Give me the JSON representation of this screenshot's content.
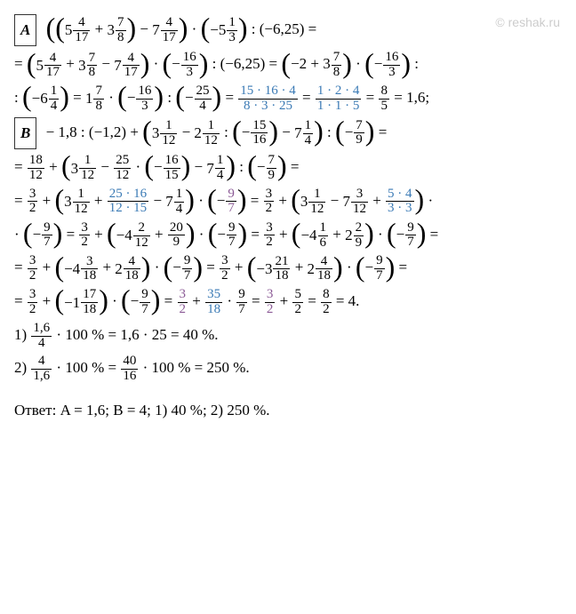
{
  "watermark": "© reshak.ru",
  "labelA": "A",
  "labelB": "B",
  "lineA1_p1": "5",
  "lineA1_f1n": "4",
  "lineA1_f1d": "17",
  "lineA1_p2": "3",
  "lineA1_f2n": "7",
  "lineA1_f2d": "8",
  "lineA1_p3": "7",
  "lineA1_f3n": "4",
  "lineA1_f3d": "17",
  "lineA1_p4": "−5",
  "lineA1_f4n": "1",
  "lineA1_f4d": "3",
  "lineA1_tail": " : (−6,25) =",
  "lineA2_p1": "5",
  "lineA2_f1n": "4",
  "lineA2_f1d": "17",
  "lineA2_p2": "3",
  "lineA2_f2n": "7",
  "lineA2_f2d": "8",
  "lineA2_p3": "7",
  "lineA2_f3n": "4",
  "lineA2_f3d": "17",
  "lineA2_f4n": "16",
  "lineA2_f4d": "3",
  "lineA2_mid": " : (−6,25) = ",
  "lineA2_p5": "−2 + 3",
  "lineA2_f5n": "7",
  "lineA2_f5d": "8",
  "lineA2_f6n": "16",
  "lineA2_f6d": "3",
  "lineA3_p1": "−6",
  "lineA3_f1n": "1",
  "lineA3_f1d": "4",
  "lineA3_p2": "1",
  "lineA3_f2n": "7",
  "lineA3_f2d": "8",
  "lineA3_f3n": "16",
  "lineA3_f3d": "3",
  "lineA3_f4n": "25",
  "lineA3_f4d": "4",
  "lineA3_f5n": "15 · 16 · 4",
  "lineA3_f5d": "8 · 3 · 25",
  "lineA3_f6n": "1 · 2 · 4",
  "lineA3_f6d": "1 · 1 · 5",
  "lineA3_f7n": "8",
  "lineA3_f7d": "5",
  "lineA3_tail": " = 1,6;",
  "lineB1_head": "− 1,8 : (−1,2) + ",
  "lineB1_p1": "3",
  "lineB1_f1n": "1",
  "lineB1_f1d": "12",
  "lineB1_p2": "2",
  "lineB1_f2n": "1",
  "lineB1_f2d": "12",
  "lineB1_f3n": "15",
  "lineB1_f3d": "16",
  "lineB1_p4": "7",
  "lineB1_f4n": "1",
  "lineB1_f4d": "4",
  "lineB1_f5n": "7",
  "lineB1_f5d": "9",
  "lineB2_f1n": "18",
  "lineB2_f1d": "12",
  "lineB2_p2": "3",
  "lineB2_f2n": "1",
  "lineB2_f2d": "12",
  "lineB2_f3n": "25",
  "lineB2_f3d": "12",
  "lineB2_f4n": "16",
  "lineB2_f4d": "15",
  "lineB2_p5": "7",
  "lineB2_f5n": "1",
  "lineB2_f5d": "4",
  "lineB2_f6n": "7",
  "lineB2_f6d": "9",
  "lineB3_f1n": "3",
  "lineB3_f1d": "2",
  "lineB3_p2": "3",
  "lineB3_f2n": "1",
  "lineB3_f2d": "12",
  "lineB3_f3n": "25 · 16",
  "lineB3_f3d": "12 · 15",
  "lineB3_p4": "7",
  "lineB3_f4n": "1",
  "lineB3_f4d": "4",
  "lineB3_f5n": "9",
  "lineB3_f5d": "7",
  "lineB3_f6n": "3",
  "lineB3_f6d": "2",
  "lineB3_p7": "3",
  "lineB3_f7n": "1",
  "lineB3_f7d": "12",
  "lineB3_p8": "7",
  "lineB3_f8n": "3",
  "lineB3_f8d": "12",
  "lineB3_f9n": "5 · 4",
  "lineB3_f9d": "3 · 3",
  "lineB4_f1n": "9",
  "lineB4_f1d": "7",
  "lineB4_f2n": "3",
  "lineB4_f2d": "2",
  "lineB4_p3": "−4",
  "lineB4_f3n": "2",
  "lineB4_f3d": "12",
  "lineB4_f4n": "20",
  "lineB4_f4d": "9",
  "lineB4_f5n": "9",
  "lineB4_f5d": "7",
  "lineB4_f6n": "3",
  "lineB4_f6d": "2",
  "lineB4_p7": "−4",
  "lineB4_f7n": "1",
  "lineB4_f7d": "6",
  "lineB4_p8": "2",
  "lineB4_f8n": "2",
  "lineB4_f8d": "9",
  "lineB4_f9n": "9",
  "lineB4_f9d": "7",
  "lineB5_f1n": "3",
  "lineB5_f1d": "2",
  "lineB5_p2": "−4",
  "lineB5_f2n": "3",
  "lineB5_f2d": "18",
  "lineB5_p3": "2",
  "lineB5_f3n": "4",
  "lineB5_f3d": "18",
  "lineB5_f4n": "9",
  "lineB5_f4d": "7",
  "lineB5_f5n": "3",
  "lineB5_f5d": "2",
  "lineB5_p6": "−3",
  "lineB5_f6n": "21",
  "lineB5_f6d": "18",
  "lineB5_p7": "2",
  "lineB5_f7n": "4",
  "lineB5_f7d": "18",
  "lineB5_f8n": "9",
  "lineB5_f8d": "7",
  "lineB6_f1n": "3",
  "lineB6_f1d": "2",
  "lineB6_p2": "−1",
  "lineB6_f2n": "17",
  "lineB6_f2d": "18",
  "lineB6_f3n": "9",
  "lineB6_f3d": "7",
  "lineB6_f4n": "3",
  "lineB6_f4d": "2",
  "lineB6_f5n": "35",
  "lineB6_f5d": "18",
  "lineB6_f6n": "9",
  "lineB6_f6d": "7",
  "lineB6_f7n": "3",
  "lineB6_f7d": "2",
  "lineB6_f8n": "5",
  "lineB6_f8d": "2",
  "lineB6_f9n": "8",
  "lineB6_f9d": "2",
  "lineB6_tail": " = 4.",
  "p1_lead": "1) ",
  "p1_fn": "1,6",
  "p1_fd": "4",
  "p1_mid": " · 100 % = 1,6 · 25 = 40 %.",
  "p2_lead": "2) ",
  "p2_fn": "4",
  "p2_fd": "1,6",
  "p2_mid": " · 100 % = ",
  "p2_f2n": "40",
  "p2_f2d": "16",
  "p2_tail": " · 100 % = 250 %.",
  "answer": "Ответ: A = 1,6;   B = 4;   1) 40 %;   2) 250 %."
}
